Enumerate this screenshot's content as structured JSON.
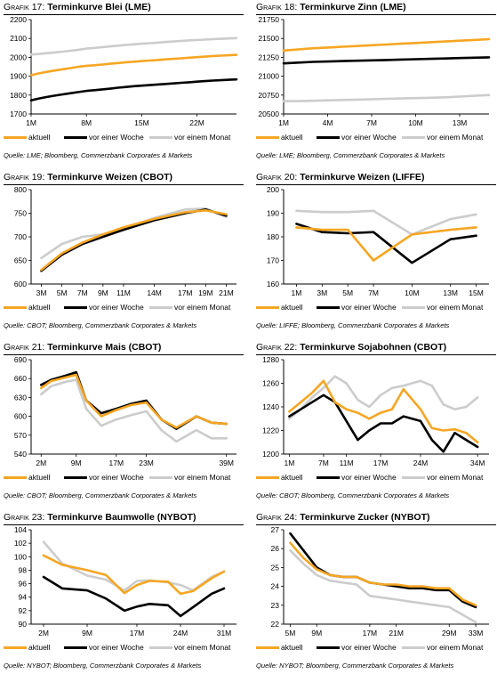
{
  "colors": {
    "aktuell": "#f5a623",
    "woche": "#000000",
    "monat": "#cccccc"
  },
  "legend": {
    "aktuell": "aktuell",
    "woche": "vor einer Woche",
    "monat": "vor einem Monat"
  },
  "charts": [
    {
      "id": "g17",
      "prefix": "Grafik 17:",
      "title": "Terminkurve Blei (LME)",
      "source": "Quelle: LME; Bloomberg, Commerzbank Corporates & Markets",
      "yticks": [
        "1700",
        "1800",
        "1900",
        "2000",
        "2100",
        "2200"
      ],
      "xticks": [
        "1M",
        "8M",
        "15M",
        "22M"
      ]
    },
    {
      "id": "g18",
      "prefix": "Grafik 18:",
      "title": "Terminkurve Zinn (LME)",
      "source": "Quelle: LME; Bloomberg, Commerzbank Corporates & Markets",
      "yticks": [
        "20500",
        "20750",
        "21000",
        "21250",
        "21500",
        "21750"
      ],
      "xticks": [
        "1M",
        "4M",
        "7M",
        "10M",
        "13M"
      ]
    },
    {
      "id": "g19",
      "prefix": "Grafik 19:",
      "title": "Terminkurve Weizen (CBOT)",
      "source": "Quelle: CBOT; Bloomberg, Commerzbank Corporates & Markets",
      "yticks": [
        "600",
        "650",
        "700",
        "750",
        "800"
      ],
      "xticks": [
        "3M",
        "5M",
        "7M",
        "9M",
        "11M",
        "14M",
        "17M",
        "19M",
        "21M"
      ]
    },
    {
      "id": "g20",
      "prefix": "Grafik 20:",
      "title": "Terminkurve Weizen (LIFFE)",
      "source": "Quelle: LIFFE; Bloomberg, Commerzbank Corporates & Markets",
      "yticks": [
        "160",
        "170",
        "180",
        "190",
        "200"
      ],
      "xticks": [
        "1M",
        "3M",
        "5M",
        "7M",
        "10M",
        "13M",
        "15M"
      ]
    },
    {
      "id": "g21",
      "prefix": "Grafik 21:",
      "title": "Terminkurve Mais (CBOT)",
      "source": "Quelle: CBOT; Bloomberg, Commerzbank Corporates & Markets",
      "yticks": [
        "540",
        "570",
        "600",
        "630",
        "660",
        "690"
      ],
      "xticks": [
        "2M",
        "9M",
        "17M",
        "23M",
        "39M"
      ]
    },
    {
      "id": "g22",
      "prefix": "Grafik 22:",
      "title": "Terminkurve Sojabohnen (CBOT)",
      "source": "Quelle: CBOT; Bloomberg, Commerzbank Corporates & Markets",
      "yticks": [
        "1200",
        "1220",
        "1240",
        "1260",
        "1280"
      ],
      "xticks": [
        "1M",
        "7M",
        "11M",
        "17M",
        "24M",
        "34M"
      ]
    },
    {
      "id": "g23",
      "prefix": "Grafik 23:",
      "title": "Terminkurve Baumwolle (NYBOT)",
      "source": "Quelle: NYBOT; Bloomberg, Commerzbank Corporates & Markets",
      "yticks": [
        "90",
        "92",
        "94",
        "96",
        "98",
        "100",
        "102",
        "104"
      ],
      "xticks": [
        "2M",
        "9M",
        "17M",
        "24M",
        "31M"
      ]
    },
    {
      "id": "g24",
      "prefix": "Grafik 24:",
      "title": "Terminkurve Zucker (NYBOT)",
      "source": "Quelle: NYBOT; Bloomberg, Commerzbank Corporates & Markets",
      "yticks": [
        "22",
        "23",
        "24",
        "25",
        "26",
        "27"
      ],
      "xticks": [
        "5M",
        "9M",
        "17M",
        "21M",
        "29M",
        "33M"
      ]
    }
  ],
  "chart_data": [
    {
      "type": "line",
      "title": "Terminkurve Blei (LME)",
      "ylim": [
        1700,
        2200
      ],
      "xlim": [
        1,
        27
      ],
      "series": [
        {
          "name": "aktuell",
          "x": [
            1,
            2,
            3,
            4,
            5,
            6,
            7,
            8,
            9,
            10,
            11,
            12,
            13,
            14,
            15,
            16,
            17,
            18,
            19,
            20,
            21,
            22,
            23,
            24,
            25,
            26,
            27
          ],
          "y": [
            1905,
            1915,
            1923,
            1930,
            1937,
            1943,
            1950,
            1955,
            1958,
            1962,
            1966,
            1970,
            1974,
            1977,
            1980,
            1983,
            1986,
            1989,
            1992,
            1995,
            1998,
            2001,
            2004,
            2007,
            2009,
            2011,
            2013
          ]
        },
        {
          "name": "vor einer Woche",
          "x": [
            1,
            2,
            3,
            4,
            5,
            6,
            7,
            8,
            9,
            10,
            11,
            12,
            13,
            14,
            15,
            16,
            17,
            18,
            19,
            20,
            21,
            22,
            23,
            24,
            25,
            26,
            27
          ],
          "y": [
            1772,
            1782,
            1790,
            1797,
            1804,
            1810,
            1816,
            1822,
            1826,
            1830,
            1834,
            1839,
            1843,
            1847,
            1850,
            1853,
            1856,
            1859,
            1862,
            1865,
            1868,
            1871,
            1874,
            1877,
            1879,
            1881,
            1883
          ]
        },
        {
          "name": "vor einem Monat",
          "x": [
            1,
            2,
            3,
            4,
            5,
            6,
            7,
            8,
            9,
            10,
            11,
            12,
            13,
            14,
            15,
            16,
            17,
            18,
            19,
            20,
            21,
            22,
            23,
            24,
            25,
            26,
            27
          ],
          "y": [
            2015,
            2018,
            2022,
            2026,
            2030,
            2035,
            2040,
            2046,
            2050,
            2054,
            2058,
            2062,
            2066,
            2069,
            2072,
            2075,
            2078,
            2081,
            2084,
            2087,
            2090,
            2092,
            2094,
            2096,
            2098,
            2100,
            2102
          ]
        }
      ]
    },
    {
      "type": "line",
      "title": "Terminkurve Zinn (LME)",
      "ylim": [
        20500,
        21750
      ],
      "xlim": [
        1,
        15
      ],
      "series": [
        {
          "name": "aktuell",
          "x": [
            1,
            2,
            3,
            4,
            5,
            6,
            7,
            8,
            9,
            10,
            11,
            12,
            13,
            14,
            15
          ],
          "y": [
            21340,
            21355,
            21370,
            21380,
            21390,
            21400,
            21410,
            21420,
            21430,
            21440,
            21450,
            21460,
            21470,
            21480,
            21490
          ]
        },
        {
          "name": "vor einer Woche",
          "x": [
            1,
            2,
            3,
            4,
            5,
            6,
            7,
            8,
            9,
            10,
            11,
            12,
            13,
            14,
            15
          ],
          "y": [
            21170,
            21180,
            21190,
            21195,
            21200,
            21205,
            21210,
            21215,
            21220,
            21225,
            21230,
            21235,
            21240,
            21245,
            21250
          ]
        },
        {
          "name": "vor einem Monat",
          "x": [
            1,
            2,
            3,
            4,
            5,
            6,
            7,
            8,
            9,
            10,
            11,
            12,
            13,
            14,
            15
          ],
          "y": [
            20670,
            20670,
            20675,
            20680,
            20685,
            20690,
            20695,
            20700,
            20705,
            20710,
            20715,
            20720,
            20730,
            20740,
            20750
          ]
        }
      ]
    },
    {
      "type": "line",
      "title": "Terminkurve Weizen (CBOT)",
      "ylim": [
        600,
        800
      ],
      "xlim": [
        2,
        22
      ],
      "series": [
        {
          "name": "aktuell",
          "x": [
            3,
            5,
            7,
            9,
            11,
            14,
            17,
            19,
            21
          ],
          "y": [
            630,
            665,
            688,
            705,
            720,
            738,
            752,
            756,
            748
          ]
        },
        {
          "name": "vor einer Woche",
          "x": [
            3,
            5,
            7,
            9,
            11,
            14,
            17,
            19,
            21
          ],
          "y": [
            628,
            662,
            685,
            700,
            715,
            735,
            750,
            758,
            745
          ]
        },
        {
          "name": "vor einem Monat",
          "x": [
            3,
            5,
            7,
            9,
            11,
            14,
            17,
            19,
            21
          ],
          "y": [
            655,
            685,
            700,
            705,
            718,
            740,
            758,
            760,
            742
          ]
        }
      ]
    },
    {
      "type": "line",
      "title": "Terminkurve Weizen (LIFFE)",
      "ylim": [
        160,
        200
      ],
      "xlim": [
        0,
        16
      ],
      "series": [
        {
          "name": "aktuell",
          "x": [
            1,
            3,
            5,
            7,
            10,
            13,
            15
          ],
          "y": [
            184,
            183,
            183,
            170,
            181,
            183,
            184
          ]
        },
        {
          "name": "vor einer Woche",
          "x": [
            1,
            3,
            5,
            7,
            10,
            13,
            15
          ],
          "y": [
            185.5,
            182,
            181.5,
            182,
            169,
            179,
            180.5
          ]
        },
        {
          "name": "vor einem Monat",
          "x": [
            1,
            3,
            5,
            7,
            10,
            13,
            15
          ],
          "y": [
            191,
            190.5,
            190.5,
            191,
            181,
            187.5,
            189.5
          ]
        }
      ]
    },
    {
      "type": "line",
      "title": "Terminkurve Mais (CBOT)",
      "ylim": [
        540,
        690
      ],
      "xlim": [
        0,
        41
      ],
      "series": [
        {
          "name": "aktuell",
          "x": [
            2,
            4,
            7,
            9,
            11,
            14,
            17,
            20,
            23,
            26,
            29,
            33,
            36,
            39
          ],
          "y": [
            645,
            656,
            662,
            666,
            625,
            600,
            610,
            618,
            622,
            595,
            582,
            600,
            590,
            588
          ]
        },
        {
          "name": "vor einer Woche",
          "x": [
            2,
            4,
            7,
            9,
            11,
            14,
            17,
            20,
            23,
            26,
            29,
            33,
            36,
            39
          ],
          "y": [
            650,
            658,
            665,
            670,
            625,
            605,
            612,
            620,
            625,
            595,
            580,
            600,
            590,
            588
          ]
        },
        {
          "name": "vor einem Monat",
          "x": [
            2,
            4,
            7,
            9,
            11,
            14,
            17,
            20,
            23,
            26,
            29,
            33,
            36,
            39
          ],
          "y": [
            635,
            648,
            655,
            658,
            612,
            585,
            595,
            602,
            608,
            578,
            560,
            578,
            565,
            565
          ]
        }
      ]
    },
    {
      "type": "line",
      "title": "Terminkurve Sojabohnen (CBOT)",
      "ylim": [
        1200,
        1280
      ],
      "xlim": [
        0,
        36
      ],
      "series": [
        {
          "name": "aktuell",
          "x": [
            1,
            3,
            5,
            7,
            9,
            11,
            13,
            15,
            17,
            19,
            21,
            24,
            26,
            28,
            30,
            32,
            34
          ],
          "y": [
            1236,
            1244,
            1252,
            1262,
            1244,
            1238,
            1235,
            1230,
            1235,
            1238,
            1255,
            1238,
            1222,
            1220,
            1221,
            1218,
            1210
          ]
        },
        {
          "name": "vor einer Woche",
          "x": [
            1,
            3,
            5,
            7,
            9,
            11,
            13,
            15,
            17,
            19,
            21,
            24,
            26,
            28,
            30,
            32,
            34
          ],
          "y": [
            1232,
            1238,
            1244,
            1250,
            1244,
            1228,
            1212,
            1220,
            1226,
            1226,
            1232,
            1228,
            1212,
            1202,
            1218,
            1212,
            1206
          ]
        },
        {
          "name": "vor einem Monat",
          "x": [
            1,
            3,
            5,
            7,
            9,
            11,
            13,
            15,
            17,
            19,
            21,
            24,
            26,
            28,
            30,
            32,
            34
          ],
          "y": [
            1230,
            1238,
            1248,
            1256,
            1266,
            1260,
            1246,
            1240,
            1250,
            1256,
            1258,
            1262,
            1258,
            1242,
            1238,
            1240,
            1248
          ]
        }
      ]
    },
    {
      "type": "line",
      "title": "Terminkurve Baumwolle (NYBOT)",
      "ylim": [
        90,
        104
      ],
      "xlim": [
        0,
        33
      ],
      "series": [
        {
          "name": "aktuell",
          "x": [
            2,
            5,
            9,
            12,
            15,
            17,
            19,
            22,
            24,
            26,
            29,
            31
          ],
          "y": [
            100.2,
            98.8,
            98.0,
            97.3,
            94.6,
            95.8,
            96.4,
            96.3,
            94.5,
            94.9,
            96.8,
            97.8
          ]
        },
        {
          "name": "vor einer Woche",
          "x": [
            2,
            5,
            9,
            12,
            15,
            17,
            19,
            22,
            24,
            26,
            29,
            31
          ],
          "y": [
            97.0,
            95.3,
            95.0,
            93.8,
            92.0,
            92.6,
            93.0,
            92.8,
            91.2,
            92.5,
            94.5,
            95.3
          ]
        },
        {
          "name": "vor einem Monat",
          "x": [
            2,
            5,
            9,
            12,
            15,
            17,
            19,
            22,
            24,
            26,
            29,
            31
          ],
          "y": [
            102.2,
            99.0,
            97.2,
            96.6,
            95.0,
            96.4,
            96.5,
            96.2,
            95.8,
            95.0,
            97.0,
            97.8
          ]
        }
      ]
    },
    {
      "type": "line",
      "title": "Terminkurve Zucker (NYBOT)",
      "ylim": [
        22,
        27
      ],
      "xlim": [
        4,
        35
      ],
      "series": [
        {
          "name": "aktuell",
          "x": [
            5,
            7,
            9,
            11,
            13,
            15,
            17,
            19,
            21,
            23,
            25,
            27,
            29,
            31,
            33
          ],
          "y": [
            26.3,
            25.5,
            24.9,
            24.6,
            24.5,
            24.5,
            24.2,
            24.1,
            24.1,
            24.0,
            24.0,
            23.9,
            23.9,
            23.3,
            23.0
          ]
        },
        {
          "name": "vor einer Woche",
          "x": [
            5,
            7,
            9,
            11,
            13,
            15,
            17,
            19,
            21,
            23,
            25,
            27,
            29,
            31,
            33
          ],
          "y": [
            26.8,
            25.9,
            25.0,
            24.6,
            24.5,
            24.5,
            24.2,
            24.1,
            24.0,
            23.9,
            23.9,
            23.8,
            23.8,
            23.2,
            22.9
          ]
        },
        {
          "name": "vor einem Monat",
          "x": [
            5,
            7,
            9,
            11,
            13,
            15,
            17,
            19,
            21,
            23,
            25,
            27,
            29,
            31,
            33
          ],
          "y": [
            25.9,
            25.2,
            24.6,
            24.3,
            24.2,
            24.1,
            23.5,
            23.4,
            23.3,
            23.2,
            23.1,
            23.0,
            22.9,
            22.5,
            22.1
          ]
        }
      ]
    }
  ]
}
